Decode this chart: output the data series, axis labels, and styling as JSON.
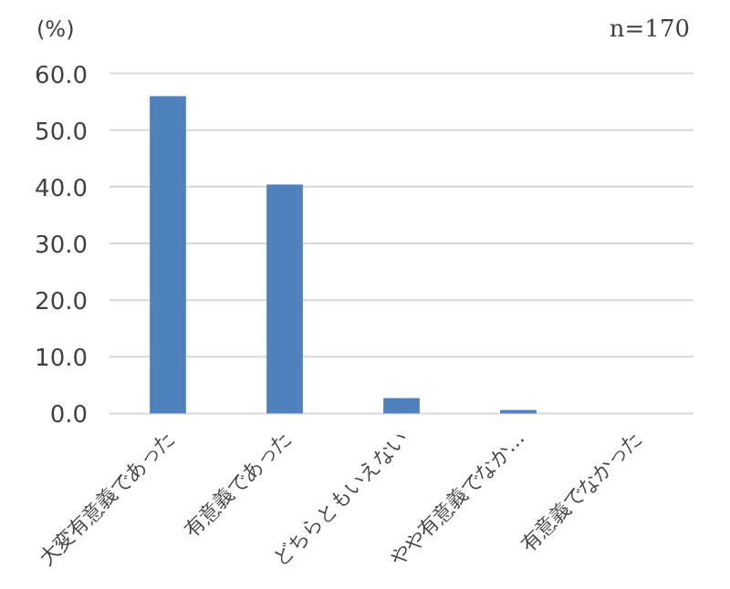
{
  "chart_data": {
    "type": "bar",
    "ylabel": "(%)",
    "annotations": [
      "n=170"
    ],
    "categories": [
      "大変有意義であった",
      "有意義であった",
      "どちらともいえない",
      "やや有意義でなか…",
      "有意義でなかった"
    ],
    "values": [
      56.0,
      40.4,
      2.7,
      0.6,
      0
    ],
    "color": "#4f81bd",
    "ylim": [
      0,
      60
    ],
    "yticks": [
      {
        "value": 0,
        "label": "0.0"
      },
      {
        "value": 10,
        "label": "10.0"
      },
      {
        "value": 20,
        "label": "20.0"
      },
      {
        "value": 30,
        "label": "30.0"
      },
      {
        "value": 40,
        "label": "40.0"
      },
      {
        "value": 50,
        "label": "50.0"
      },
      {
        "value": 60,
        "label": "60.0"
      }
    ],
    "grid": "y"
  }
}
